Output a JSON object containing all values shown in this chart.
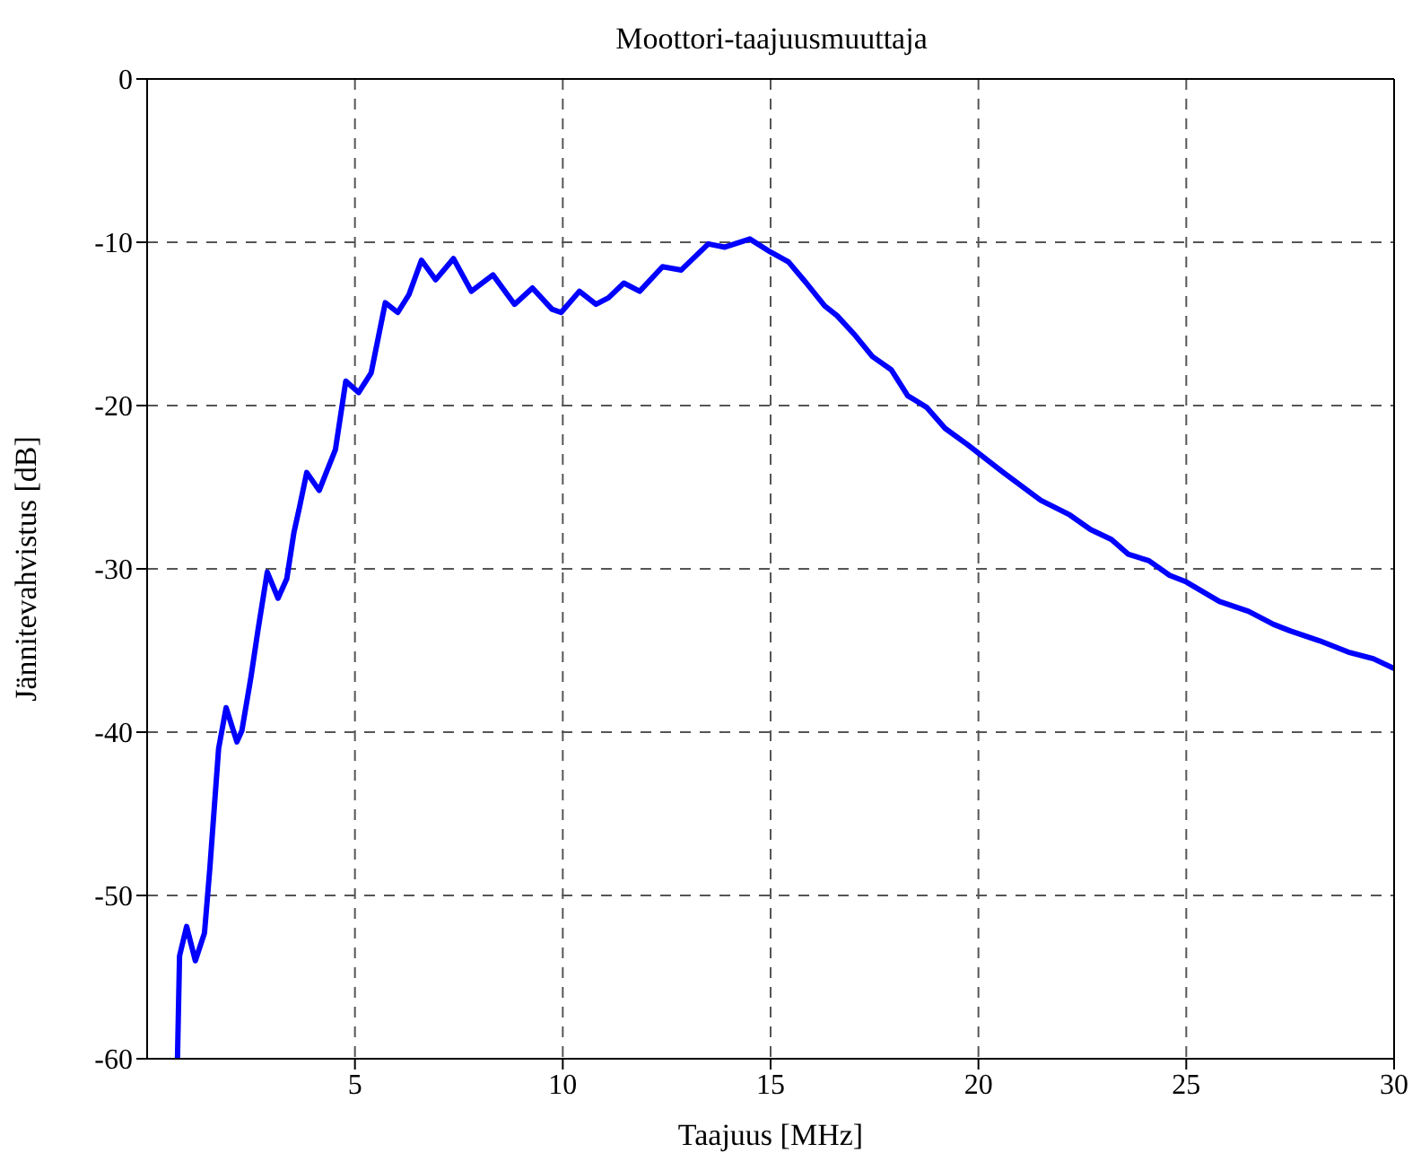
{
  "chart_data": {
    "type": "line",
    "title": "Moottori-taajuusmuuttaja",
    "xlabel": "Taajuus [MHz]",
    "ylabel": "Jännitevahvistus [dB]",
    "xlim": [
      0,
      30
    ],
    "xticks": [
      5,
      10,
      15,
      20,
      25,
      30
    ],
    "ylim": [
      -60,
      0
    ],
    "yticks": [
      -60,
      -50,
      -40,
      -30,
      -20,
      -10,
      0
    ],
    "grid": true,
    "line_style": "solid",
    "series": [
      {
        "color": "#0000ff",
        "x": [
          0.73,
          0.78,
          0.95,
          1.16,
          1.38,
          1.51,
          1.72,
          1.9,
          2.16,
          2.28,
          2.5,
          2.67,
          2.89,
          3.15,
          3.36,
          3.53,
          3.66,
          3.84,
          4.14,
          4.31,
          4.53,
          4.78,
          5.09,
          5.39,
          5.73,
          6.03,
          6.3,
          6.6,
          6.94,
          7.37,
          7.8,
          8.32,
          8.84,
          9.27,
          9.74,
          9.96,
          10.4,
          10.8,
          11.1,
          11.47,
          11.85,
          12.4,
          12.85,
          13.5,
          13.9,
          14.5,
          15.0,
          15.43,
          15.86,
          16.3,
          16.6,
          17.0,
          17.45,
          17.9,
          18.3,
          18.75,
          19.2,
          19.74,
          20.6,
          21.5,
          22.2,
          22.7,
          23.2,
          23.6,
          24.1,
          24.6,
          25.0,
          25.8,
          26.5,
          27.1,
          27.5,
          28.2,
          28.9,
          29.5,
          30
        ],
        "values": [
          -60,
          -53.7,
          -51.9,
          -54,
          -52.3,
          -48.3,
          -41,
          -38.5,
          -40.6,
          -39.9,
          -36.6,
          -33.7,
          -30.2,
          -31.8,
          -30.6,
          -27.8,
          -26.3,
          -24.1,
          -25.2,
          -24.1,
          -22.7,
          -18.5,
          -19.2,
          -18,
          -13.7,
          -14.3,
          -13.2,
          -11.1,
          -12.3,
          -11,
          -13,
          -12,
          -13.8,
          -12.8,
          -14.1,
          -14.3,
          -13,
          -13.8,
          -13.4,
          -12.5,
          -13,
          -11.5,
          -11.7,
          -10.1,
          -10.3,
          -9.8,
          -10.6,
          -11.2,
          -12.5,
          -13.9,
          -14.5,
          -15.6,
          -17,
          -17.8,
          -19.4,
          -20.1,
          -21.4,
          -22.4,
          -24.1,
          -25.8,
          -26.7,
          -27.6,
          -28.2,
          -29.1,
          -29.5,
          -30.4,
          -30.8,
          -32,
          -32.6,
          -33.4,
          -33.8,
          -34.4,
          -35.1,
          -35.5,
          -36.1
        ]
      }
    ]
  }
}
